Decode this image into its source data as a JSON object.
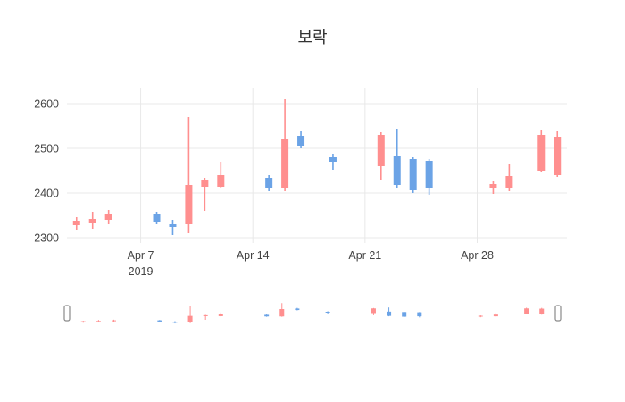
{
  "chart_data": {
    "type": "candlestick",
    "title": "보락",
    "grid": true,
    "legend": "none",
    "rangeslider": true,
    "colors": {
      "increasing": "#ff8f8f",
      "decreasing": "#6ba3e6",
      "gridline": "#e8e8e8",
      "tick_text": "#444444",
      "handle_stroke": "#8a8a8a",
      "background": "#ffffff"
    },
    "ylim": [
      2288,
      2634
    ],
    "yticks": [
      2300,
      2400,
      2500,
      2600
    ],
    "xlim_days": [
      1.4,
      32.6
    ],
    "xticks": [
      {
        "day": 6,
        "label": "Apr 7",
        "sublabel": "2019"
      },
      {
        "day": 13,
        "label": "Apr 14",
        "sublabel": ""
      },
      {
        "day": 20,
        "label": "Apr 21",
        "sublabel": ""
      },
      {
        "day": 27,
        "label": "Apr 28",
        "sublabel": ""
      }
    ],
    "candles": [
      {
        "date": "Apr 3",
        "day": 2,
        "open": 2328,
        "high": 2346,
        "low": 2316,
        "close": 2338
      },
      {
        "date": "Apr 4",
        "day": 3,
        "open": 2332,
        "high": 2358,
        "low": 2320,
        "close": 2342
      },
      {
        "date": "Apr 5",
        "day": 4,
        "open": 2340,
        "high": 2362,
        "low": 2330,
        "close": 2352
      },
      {
        "date": "Apr 8",
        "day": 7,
        "open": 2352,
        "high": 2358,
        "low": 2330,
        "close": 2334
      },
      {
        "date": "Apr 9",
        "day": 8,
        "open": 2330,
        "high": 2340,
        "low": 2306,
        "close": 2324
      },
      {
        "date": "Apr 10",
        "day": 9,
        "open": 2330,
        "high": 2570,
        "low": 2310,
        "close": 2418
      },
      {
        "date": "Apr 11",
        "day": 10,
        "open": 2414,
        "high": 2434,
        "low": 2360,
        "close": 2428
      },
      {
        "date": "Apr 12",
        "day": 11,
        "open": 2414,
        "high": 2470,
        "low": 2410,
        "close": 2440
      },
      {
        "date": "Apr 15",
        "day": 14,
        "open": 2434,
        "high": 2440,
        "low": 2404,
        "close": 2410
      },
      {
        "date": "Apr 16",
        "day": 15,
        "open": 2410,
        "high": 2610,
        "low": 2404,
        "close": 2520
      },
      {
        "date": "Apr 17",
        "day": 16,
        "open": 2528,
        "high": 2538,
        "low": 2500,
        "close": 2506
      },
      {
        "date": "Apr 19",
        "day": 18,
        "open": 2480,
        "high": 2488,
        "low": 2452,
        "close": 2470
      },
      {
        "date": "Apr 22",
        "day": 21,
        "open": 2460,
        "high": 2536,
        "low": 2428,
        "close": 2530
      },
      {
        "date": "Apr 23",
        "day": 22,
        "open": 2482,
        "high": 2544,
        "low": 2412,
        "close": 2418
      },
      {
        "date": "Apr 24",
        "day": 23,
        "open": 2476,
        "high": 2480,
        "low": 2400,
        "close": 2406
      },
      {
        "date": "Apr 25",
        "day": 24,
        "open": 2472,
        "high": 2476,
        "low": 2396,
        "close": 2412
      },
      {
        "date": "Apr 29",
        "day": 28,
        "open": 2410,
        "high": 2426,
        "low": 2398,
        "close": 2420
      },
      {
        "date": "Apr 30",
        "day": 29,
        "open": 2412,
        "high": 2464,
        "low": 2404,
        "close": 2438
      },
      {
        "date": "May 2",
        "day": 31,
        "open": 2450,
        "high": 2540,
        "low": 2446,
        "close": 2530
      },
      {
        "date": "May 3",
        "day": 32,
        "open": 2440,
        "high": 2538,
        "low": 2436,
        "close": 2526
      }
    ]
  }
}
